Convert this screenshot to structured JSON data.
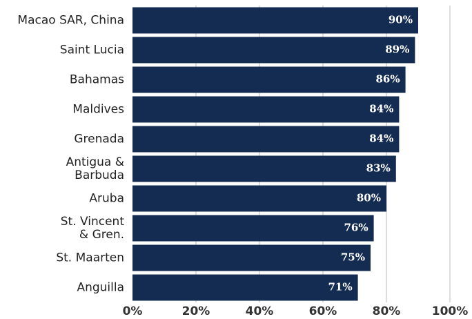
{
  "chart_data": {
    "type": "bar",
    "orientation": "horizontal",
    "categories": [
      "Macao SAR, China",
      "Saint Lucia",
      "Bahamas",
      "Maldives",
      "Grenada",
      "Antigua &\nBarbuda",
      "Aruba",
      "St. Vincent\n& Gren.",
      "St. Maarten",
      "Anguilla"
    ],
    "values": [
      90,
      89,
      86,
      84,
      84,
      83,
      80,
      76,
      75,
      71
    ],
    "value_labels": [
      "90%",
      "89%",
      "86%",
      "84%",
      "84%",
      "83%",
      "80%",
      "76%",
      "75%",
      "71%"
    ],
    "color": "#152c52",
    "xlim": [
      0,
      100
    ],
    "xticks": [
      {
        "value": 0,
        "label": "0%"
      },
      {
        "value": 20,
        "label": "20%"
      },
      {
        "value": 40,
        "label": "40%"
      },
      {
        "value": 60,
        "label": "60%"
      },
      {
        "value": 80,
        "label": "80%"
      },
      {
        "value": 100,
        "label": "100%"
      }
    ],
    "grid": true
  }
}
